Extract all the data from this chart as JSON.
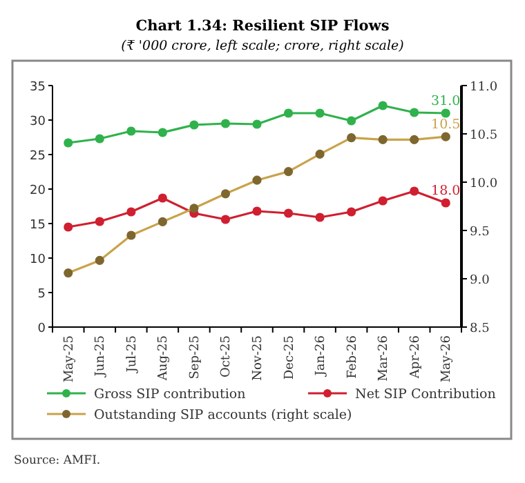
{
  "chart_data": {
    "type": "line",
    "title": "Chart 1.34: Resilient SIP Flows",
    "subtitle": "(₹ '000 crore, left scale; crore, right scale)",
    "categories": [
      "May-25",
      "Jun-25",
      "Jul-25",
      "Aug-25",
      "Sep-25",
      "Oct-25",
      "Nov-25",
      "Dec-25",
      "Jan-26",
      "Feb-26",
      "Mar-26",
      "Apr-26",
      "May-26"
    ],
    "series": [
      {
        "name": "Gross SIP contribution",
        "color": "#2fb24c",
        "values": [
          26.7,
          27.3,
          28.4,
          28.2,
          29.3,
          29.5,
          29.4,
          31.0,
          31.0,
          29.9,
          32.1,
          31.1,
          31.0
        ],
        "value_labels": [
          null,
          null,
          null,
          null,
          null,
          null,
          null,
          null,
          null,
          null,
          null,
          null,
          "31.0"
        ]
      },
      {
        "name": "Net SIP Contribution",
        "color": "#d01f30",
        "values": [
          14.5,
          15.3,
          16.7,
          18.7,
          16.5,
          15.6,
          16.8,
          16.5,
          15.9,
          16.7,
          18.3,
          19.7,
          18.0
        ],
        "value_labels": [
          null,
          null,
          null,
          null,
          null,
          null,
          null,
          null,
          null,
          null,
          null,
          null,
          "18.0"
        ]
      },
      {
        "name": "Outstanding SIP accounts (right scale)",
        "color": "#c9a24a",
        "axis": "y2",
        "values": [
          9.06,
          9.19,
          9.45,
          9.59,
          9.73,
          9.88,
          10.02,
          10.11,
          10.29,
          10.46,
          10.44,
          10.44,
          10.47
        ],
        "value_labels": [
          null,
          null,
          null,
          null,
          null,
          null,
          null,
          null,
          null,
          null,
          null,
          null,
          "10.5"
        ]
      }
    ],
    "ylim": [
      0,
      35
    ],
    "yticks": [
      0,
      5,
      10,
      15,
      20,
      25,
      30,
      35
    ],
    "y2lim": [
      8.5,
      11.0
    ],
    "y2ticks": [
      {
        "value": 8.5,
        "label": "8.5"
      },
      {
        "value": 9.0,
        "label": "9.0"
      },
      {
        "value": 9.5,
        "label": "9.5"
      },
      {
        "value": 10.0,
        "label": "10.0"
      },
      {
        "value": 10.5,
        "label": "10.5"
      },
      {
        "value": 11.0,
        "label": "11.0"
      }
    ],
    "marker": "circle",
    "line_style": "solid",
    "grid": false,
    "legend": "bottom",
    "annotations": [
      "Source: AMFI."
    ]
  }
}
